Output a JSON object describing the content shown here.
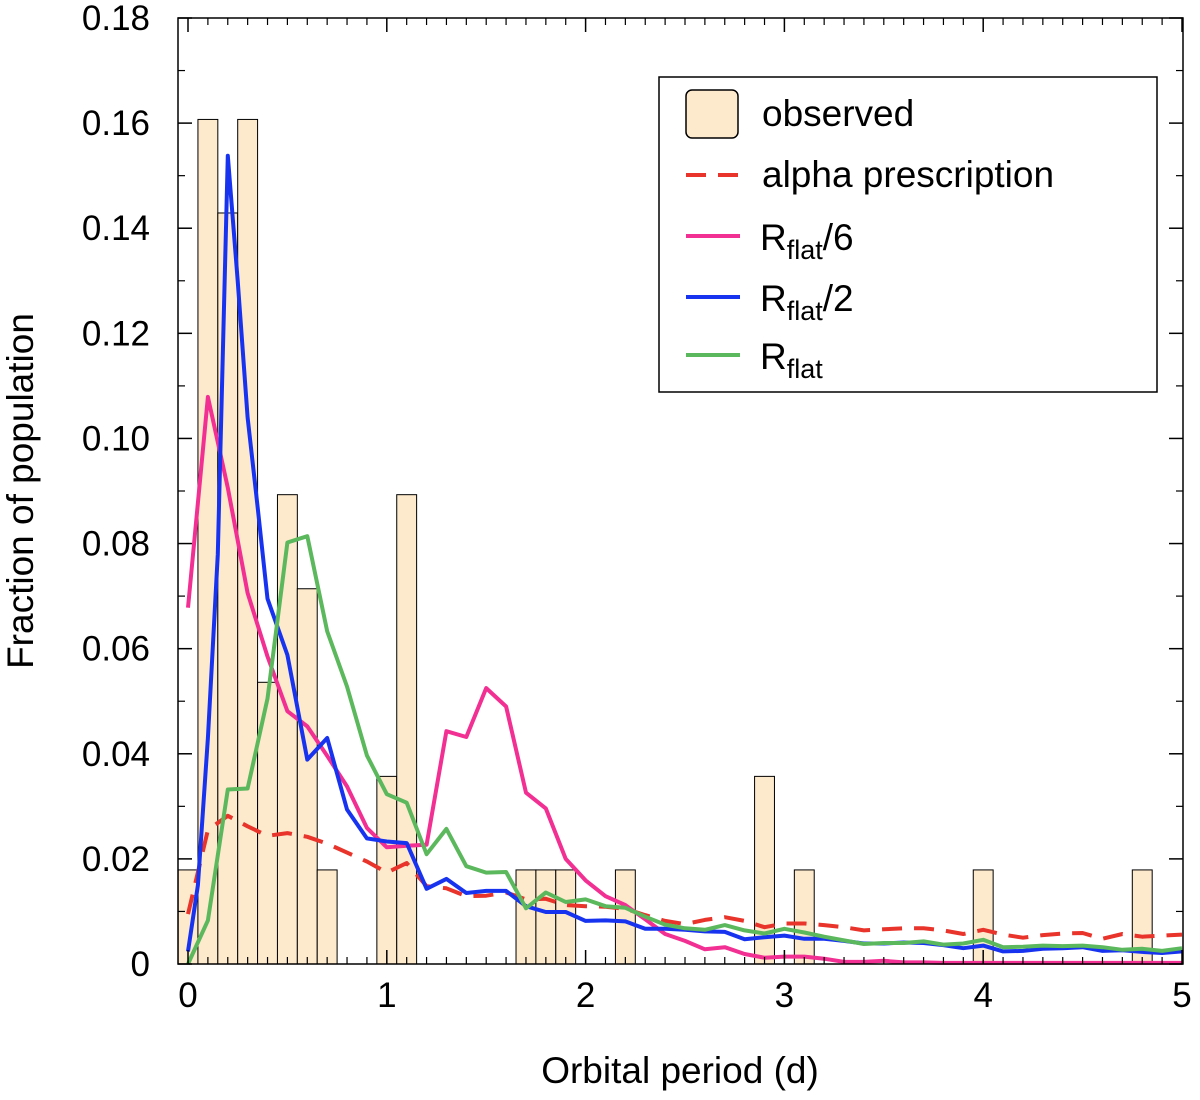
{
  "chart_data": {
    "type": "bar",
    "xlabel": "Orbital period (d)",
    "ylabel": "Fraction of population",
    "xlim": [
      0,
      5
    ],
    "ylim": [
      0,
      0.18
    ],
    "xticks": [
      0,
      1,
      2,
      3,
      4,
      5
    ],
    "xtick_labels": [
      "0",
      "1",
      "2",
      "3",
      "4",
      "5"
    ],
    "yticks": [
      0,
      0.02,
      0.04,
      0.06,
      0.08,
      0.1,
      0.12,
      0.14,
      0.16,
      0.18
    ],
    "ytick_labels": [
      "0",
      "0.02",
      "0.04",
      "0.06",
      "0.08",
      "0.10",
      "0.12",
      "0.14",
      "0.16",
      "0.18"
    ],
    "legend_position": "top-right",
    "histogram": {
      "name": "observed",
      "color": "#fde9cc",
      "edge_color": "#000000",
      "bin_width": 0.1,
      "bins": [
        {
          "x0": -0.05,
          "value": 0.0179
        },
        {
          "x0": 0.05,
          "value": 0.1607
        },
        {
          "x0": 0.15,
          "value": 0.1429
        },
        {
          "x0": 0.25,
          "value": 0.1607
        },
        {
          "x0": 0.35,
          "value": 0.0536
        },
        {
          "x0": 0.45,
          "value": 0.0893
        },
        {
          "x0": 0.55,
          "value": 0.0714
        },
        {
          "x0": 0.65,
          "value": 0.0179
        },
        {
          "x0": 0.95,
          "value": 0.0357
        },
        {
          "x0": 1.05,
          "value": 0.0893
        },
        {
          "x0": 1.65,
          "value": 0.0179
        },
        {
          "x0": 1.75,
          "value": 0.0179
        },
        {
          "x0": 1.85,
          "value": 0.0179
        },
        {
          "x0": 2.15,
          "value": 0.0179
        },
        {
          "x0": 2.85,
          "value": 0.0357
        },
        {
          "x0": 3.05,
          "value": 0.0179
        },
        {
          "x0": 3.95,
          "value": 0.0179
        },
        {
          "x0": 4.75,
          "value": 0.0179
        }
      ]
    },
    "series": [
      {
        "name": "alpha prescription",
        "color": "#e8342b",
        "style": "dashed",
        "x": [
          0,
          0.1,
          0.2,
          0.3,
          0.4,
          0.5,
          0.6,
          0.7,
          0.8,
          0.9,
          1.0,
          1.1,
          1.2,
          1.3,
          1.4,
          1.5,
          1.6,
          1.7,
          1.8,
          1.9,
          2.0,
          2.1,
          2.2,
          2.3,
          2.4,
          2.5,
          2.6,
          2.7,
          2.8,
          2.9,
          3.0,
          3.1,
          3.2,
          3.3,
          3.4,
          3.5,
          3.6,
          3.7,
          3.8,
          3.9,
          4.0,
          4.1,
          4.2,
          4.3,
          4.4,
          4.5,
          4.6,
          4.7,
          4.8,
          4.9,
          5.0
        ],
        "y": [
          0.0095,
          0.0255,
          0.0282,
          0.0262,
          0.0244,
          0.0249,
          0.0242,
          0.0229,
          0.0212,
          0.0195,
          0.0174,
          0.0192,
          0.0148,
          0.0144,
          0.0129,
          0.013,
          0.0136,
          0.0123,
          0.0124,
          0.0112,
          0.011,
          0.0109,
          0.0105,
          0.0093,
          0.0082,
          0.0076,
          0.0084,
          0.0089,
          0.0082,
          0.007,
          0.0077,
          0.0077,
          0.0074,
          0.007,
          0.0064,
          0.0066,
          0.0068,
          0.0068,
          0.0064,
          0.0057,
          0.0065,
          0.0056,
          0.005,
          0.0055,
          0.0058,
          0.0059,
          0.0048,
          0.0057,
          0.0052,
          0.0054,
          0.0056
        ]
      },
      {
        "name": "R",
        "name_sub": "flat",
        "name_suffix": "/6",
        "color": "#f22f92",
        "style": "solid",
        "x": [
          0,
          0.1,
          0.2,
          0.3,
          0.4,
          0.5,
          0.6,
          0.7,
          0.8,
          0.9,
          1.0,
          1.1,
          1.2,
          1.3,
          1.4,
          1.5,
          1.6,
          1.7,
          1.8,
          1.9,
          2.0,
          2.1,
          2.2,
          2.3,
          2.4,
          2.5,
          2.6,
          2.7,
          2.8,
          2.9,
          3.0,
          3.1,
          3.2,
          3.3,
          3.4,
          3.5,
          3.6,
          3.7,
          3.8,
          3.9,
          4.0,
          4.1,
          4.2,
          4.3,
          4.4,
          4.5,
          4.6,
          4.7,
          4.8,
          4.9,
          5.0
        ],
        "y": [
          0.0678,
          0.1079,
          0.0906,
          0.0706,
          0.0585,
          0.0481,
          0.0452,
          0.0396,
          0.0338,
          0.0259,
          0.0222,
          0.0225,
          0.0227,
          0.0443,
          0.0432,
          0.0525,
          0.049,
          0.0326,
          0.0296,
          0.02,
          0.0159,
          0.0129,
          0.0112,
          0.0085,
          0.0057,
          0.0044,
          0.0028,
          0.0032,
          0.0019,
          0.0012,
          0.0014,
          0.0014,
          0.001,
          0.0004,
          0.0004,
          0.0006,
          0.0003,
          0.0003,
          0.0002,
          0.0002,
          0.0002,
          0.0002,
          0.0002,
          0.0002,
          0.0002,
          0.0002,
          0.0002,
          0.0002,
          0.0002,
          0.0002,
          0.0002
        ]
      },
      {
        "name": "R",
        "name_sub": "flat",
        "name_suffix": "/2",
        "color": "#1733f0",
        "style": "solid",
        "x": [
          0,
          0.05,
          0.1,
          0.15,
          0.2,
          0.25,
          0.3,
          0.35,
          0.4,
          0.5,
          0.6,
          0.7,
          0.8,
          0.9,
          1.0,
          1.1,
          1.2,
          1.3,
          1.4,
          1.5,
          1.6,
          1.7,
          1.8,
          1.9,
          2.0,
          2.1,
          2.2,
          2.3,
          2.4,
          2.5,
          2.6,
          2.7,
          2.8,
          2.9,
          3.0,
          3.1,
          3.2,
          3.3,
          3.4,
          3.5,
          3.6,
          3.7,
          3.8,
          3.9,
          4.0,
          4.1,
          4.2,
          4.3,
          4.4,
          4.5,
          4.6,
          4.7,
          4.8,
          4.9,
          5.0
        ],
        "y": [
          0.0024,
          0.015,
          0.043,
          0.078,
          0.1538,
          0.13,
          0.104,
          0.087,
          0.0695,
          0.0588,
          0.0389,
          0.043,
          0.0294,
          0.0239,
          0.0233,
          0.023,
          0.0143,
          0.0162,
          0.0135,
          0.0139,
          0.0139,
          0.011,
          0.0099,
          0.0099,
          0.0082,
          0.0083,
          0.0081,
          0.0067,
          0.0067,
          0.0065,
          0.0062,
          0.0061,
          0.0047,
          0.0051,
          0.0054,
          0.0048,
          0.0048,
          0.0044,
          0.0039,
          0.0039,
          0.0041,
          0.004,
          0.0036,
          0.003,
          0.0035,
          0.0024,
          0.0025,
          0.0029,
          0.003,
          0.0032,
          0.0025,
          0.0026,
          0.0023,
          0.0021,
          0.0024
        ]
      },
      {
        "name": "R",
        "name_sub": "flat",
        "name_suffix": "",
        "color": "#5cb85c",
        "style": "solid",
        "x": [
          0,
          0.1,
          0.2,
          0.3,
          0.4,
          0.5,
          0.6,
          0.7,
          0.8,
          0.9,
          1.0,
          1.1,
          1.2,
          1.3,
          1.4,
          1.5,
          1.6,
          1.7,
          1.8,
          1.9,
          2.0,
          2.1,
          2.2,
          2.3,
          2.4,
          2.5,
          2.6,
          2.7,
          2.8,
          2.9,
          3.0,
          3.1,
          3.2,
          3.3,
          3.4,
          3.5,
          3.6,
          3.7,
          3.8,
          3.9,
          4.0,
          4.1,
          4.2,
          4.3,
          4.4,
          4.5,
          4.6,
          4.7,
          4.8,
          4.9,
          5.0
        ],
        "y": [
          0.0,
          0.0083,
          0.0332,
          0.0334,
          0.0505,
          0.0802,
          0.0814,
          0.0633,
          0.0528,
          0.0397,
          0.0323,
          0.0307,
          0.0209,
          0.0257,
          0.0186,
          0.0174,
          0.0175,
          0.0106,
          0.0136,
          0.0118,
          0.0123,
          0.011,
          0.0107,
          0.009,
          0.0075,
          0.0068,
          0.0065,
          0.0074,
          0.0064,
          0.0058,
          0.0067,
          0.006,
          0.0052,
          0.0045,
          0.0038,
          0.004,
          0.004,
          0.0043,
          0.0037,
          0.0039,
          0.0046,
          0.0032,
          0.0033,
          0.0035,
          0.0034,
          0.0035,
          0.0032,
          0.0027,
          0.0029,
          0.0025,
          0.003
        ]
      }
    ]
  }
}
